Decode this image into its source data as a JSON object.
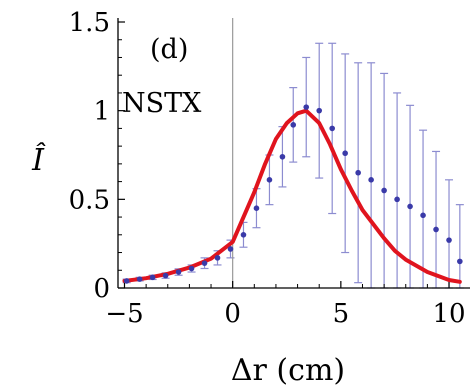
{
  "chart_data": {
    "type": "line",
    "title": "",
    "annotations": {
      "panel": "(d)",
      "device": "NSTX"
    },
    "xlabel": "Δr (cm)",
    "ylabel": "Î",
    "xlim": [
      -5.3,
      10.6
    ],
    "ylim": [
      0,
      1.5
    ],
    "xticks": [
      -5,
      0,
      5,
      10
    ],
    "xtick_labels": [
      "−5",
      "0",
      "5",
      "10"
    ],
    "yticks": [
      0,
      0.5,
      1,
      1.5
    ],
    "ytick_labels": [
      "0",
      "0.5",
      "1",
      "1.5"
    ],
    "vline_x": 0,
    "grid": false,
    "colors": {
      "curve": "#e0141e",
      "points": "#3a3aa8",
      "errorbars": "#8c8cd0",
      "axes": "#000000",
      "vline": "#9a9a9a"
    },
    "series": [
      {
        "kind": "curve",
        "x": [
          -5.0,
          -4.0,
          -3.0,
          -2.0,
          -1.0,
          0.0,
          1.0,
          1.5,
          2.0,
          2.5,
          3.0,
          3.4,
          4.0,
          4.5,
          5.0,
          5.5,
          6.0,
          7.0,
          7.5,
          8.0,
          9.0,
          10.0,
          10.5
        ],
        "y": [
          0.04,
          0.055,
          0.08,
          0.115,
          0.165,
          0.26,
          0.54,
          0.7,
          0.84,
          0.93,
          0.985,
          1.0,
          0.93,
          0.81,
          0.67,
          0.55,
          0.44,
          0.28,
          0.21,
          0.16,
          0.09,
          0.045,
          0.035
        ]
      },
      {
        "kind": "points",
        "x": [
          -4.9,
          -4.3,
          -3.7,
          -3.1,
          -2.5,
          -1.9,
          -1.3,
          -0.7,
          -0.1,
          0.5,
          1.1,
          1.7,
          2.3,
          2.8,
          3.4,
          4.0,
          4.6,
          5.2,
          5.8,
          6.4,
          7.0,
          7.6,
          8.2,
          8.8,
          9.4,
          10.0,
          10.5
        ],
        "y": [
          0.04,
          0.05,
          0.06,
          0.07,
          0.09,
          0.11,
          0.14,
          0.17,
          0.22,
          0.3,
          0.45,
          0.61,
          0.74,
          0.92,
          1.02,
          1.0,
          0.9,
          0.76,
          0.65,
          0.61,
          0.55,
          0.5,
          0.46,
          0.41,
          0.33,
          0.27,
          0.15
        ],
        "yerr": [
          0.01,
          0.01,
          0.012,
          0.015,
          0.018,
          0.02,
          0.03,
          0.04,
          0.05,
          0.07,
          0.11,
          0.14,
          0.17,
          0.21,
          0.28,
          0.38,
          0.48,
          0.56,
          0.62,
          0.66,
          0.66,
          0.6,
          0.57,
          0.48,
          0.44,
          0.34,
          0.32
        ]
      }
    ]
  }
}
